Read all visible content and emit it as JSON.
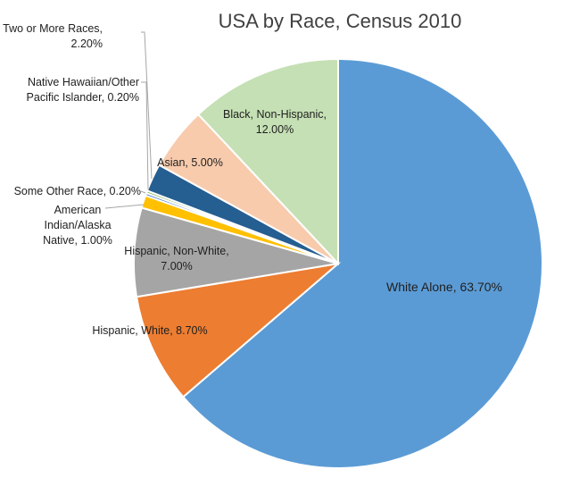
{
  "chart_data": {
    "type": "pie",
    "title": "USA by Race, Census 2010",
    "slices": [
      {
        "label": "White Alone, 63.70%",
        "name": "White Alone",
        "value": 63.7,
        "color": "#5b9bd5"
      },
      {
        "label": "Hispanic, White, 8.70%",
        "name": "Hispanic, White",
        "value": 8.7,
        "color": "#ed7d31"
      },
      {
        "label": "Hispanic, Non-White, 7.00%",
        "name": "Hispanic, Non-White",
        "value": 7.0,
        "color": "#a5a5a5"
      },
      {
        "label": "American Indian/Alaska Native, 1.00%",
        "name": "American Indian/Alaska Native",
        "value": 1.0,
        "color": "#ffc000"
      },
      {
        "label": "Some Other Race, 0.20%",
        "name": "Some Other Race",
        "value": 0.2,
        "color": "#4472c4"
      },
      {
        "label": "Native Hawaiian/Other Pacific Islander, 0.20%",
        "name": "Native Hawaiian/Other Pacific Islander",
        "value": 0.2,
        "color": "#70ad47"
      },
      {
        "label": "Two or More Races, 2.20%",
        "name": "Two or More Races",
        "value": 2.2,
        "color": "#255e91"
      },
      {
        "label": "Asian, 5.00%",
        "name": "Asian, 5.00%",
        "value": 5.0,
        "color": "#f8cbad"
      },
      {
        "label": "Black, Non-Hispanic, 12.00%",
        "name": "Black, Non-Hispanic",
        "value": 12.0,
        "color": "#c5e0b4"
      }
    ]
  }
}
